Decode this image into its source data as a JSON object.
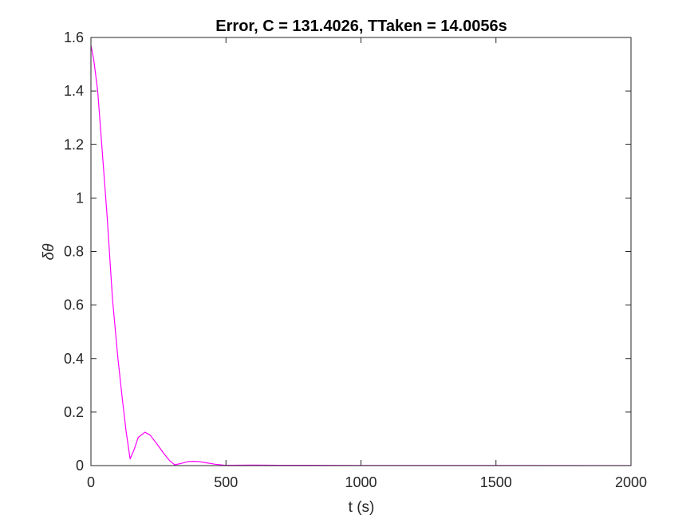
{
  "chart_data": {
    "type": "line",
    "title": "Error, C = 131.4026, TTaken = 14.0056s",
    "xlabel": "t (s)",
    "ylabel": "δθ",
    "xlim": [
      0,
      2000
    ],
    "ylim": [
      0,
      1.6
    ],
    "xticks": [
      0,
      500,
      1000,
      1500,
      2000
    ],
    "xtick_labels": [
      "0",
      "500",
      "1000",
      "1500",
      "2000"
    ],
    "yticks": [
      0,
      0.2,
      0.4,
      0.6,
      0.8,
      1,
      1.2,
      1.4,
      1.6
    ],
    "ytick_labels": [
      "0",
      "0.2",
      "0.4",
      "0.6",
      "0.8",
      "1",
      "1.2",
      "1.4",
      "1.6"
    ],
    "grid": false,
    "box": true,
    "series": [
      {
        "color": "#ff00ff",
        "x": [
          0,
          10,
          25,
          40,
          60,
          80,
          100,
          115,
          130,
          145,
          160,
          175,
          200,
          220,
          245,
          270,
          290,
          310,
          330,
          360,
          380,
          400,
          430,
          460,
          500,
          600,
          700,
          800,
          1000,
          1200,
          1500,
          2000
        ],
        "y": [
          1.57,
          1.52,
          1.4,
          1.2,
          0.93,
          0.62,
          0.4,
          0.26,
          0.13,
          0.025,
          0.06,
          0.105,
          0.125,
          0.113,
          0.08,
          0.045,
          0.02,
          0.003,
          0.007,
          0.015,
          0.016,
          0.015,
          0.01,
          0.005,
          0.001,
          0.002,
          0.001,
          0.001,
          0.0005,
          0.0005,
          0.0003,
          0.0002
        ]
      }
    ]
  }
}
